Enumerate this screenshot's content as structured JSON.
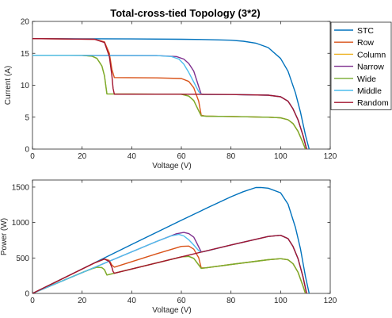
{
  "chart_data": [
    {
      "type": "line",
      "title": "Total-cross-tied Topology (3*2)",
      "xlabel": "Voltage (V)",
      "ylabel": "Current (A)",
      "xlim": [
        0,
        120
      ],
      "ylim": [
        0,
        20
      ],
      "xticks": [
        0,
        20,
        40,
        60,
        80,
        100,
        120
      ],
      "yticks": [
        0,
        5,
        10,
        15,
        20
      ],
      "grid": false,
      "legend": "outside-right",
      "series": [
        {
          "name": "STC",
          "color": "#0072BD",
          "x": [
            0,
            20,
            40,
            60,
            70,
            80,
            85,
            90,
            95,
            100,
            103,
            106,
            108,
            110,
            111.5
          ],
          "y": [
            17.3,
            17.28,
            17.25,
            17.2,
            17.15,
            17.05,
            16.9,
            16.6,
            15.9,
            14.2,
            12.2,
            8.8,
            5.8,
            2.2,
            0
          ]
        },
        {
          "name": "Row",
          "color": "#D95319",
          "x": [
            0,
            25,
            29,
            31,
            32,
            33,
            50,
            60,
            63,
            65,
            67,
            68,
            70,
            80,
            95,
            100,
            103,
            105,
            107,
            109,
            110
          ],
          "y": [
            17.3,
            17.2,
            16.8,
            15.0,
            12.5,
            11.2,
            11.15,
            11.05,
            10.6,
            9.6,
            7.5,
            5.3,
            5.15,
            5.1,
            5.0,
            4.9,
            4.6,
            4.0,
            2.8,
            1.0,
            0
          ]
        },
        {
          "name": "Column",
          "color": "#EDB120",
          "x": [
            0,
            20,
            24,
            26,
            28,
            29,
            30,
            60,
            63,
            65,
            66,
            67,
            68,
            70,
            80,
            95,
            100,
            103,
            105,
            107,
            109,
            110
          ],
          "y": [
            14.7,
            14.68,
            14.55,
            14.2,
            13.0,
            11.5,
            8.65,
            8.6,
            8.3,
            7.6,
            6.8,
            6.0,
            5.2,
            5.15,
            5.1,
            5.0,
            4.9,
            4.6,
            4.0,
            2.8,
            1.0,
            0
          ]
        },
        {
          "name": "Narrow",
          "color": "#7E2F8E",
          "x": [
            0,
            50,
            58,
            61,
            63,
            65,
            66,
            67,
            68,
            69,
            80,
            95,
            100,
            103,
            105,
            107,
            109,
            110.5
          ],
          "y": [
            14.7,
            14.65,
            14.5,
            14.1,
            13.4,
            12.2,
            11.0,
            9.8,
            8.6,
            8.55,
            8.55,
            8.45,
            8.2,
            7.5,
            6.3,
            4.6,
            2.2,
            0
          ]
        },
        {
          "name": "Wide",
          "color": "#77AC30",
          "x": [
            0,
            20,
            24,
            26,
            28,
            29,
            30,
            60,
            63,
            65,
            66,
            67,
            68,
            70,
            80,
            95,
            100,
            103,
            105,
            107,
            109,
            110
          ],
          "y": [
            14.7,
            14.68,
            14.55,
            14.2,
            13.0,
            11.5,
            8.65,
            8.6,
            8.3,
            7.6,
            6.8,
            6.0,
            5.2,
            5.15,
            5.1,
            5.0,
            4.9,
            4.6,
            4.0,
            2.8,
            1.0,
            0
          ]
        },
        {
          "name": "Middle",
          "color": "#4DBEEE",
          "x": [
            0,
            50,
            56,
            59,
            61,
            63,
            65,
            67,
            68,
            69,
            80,
            95,
            100,
            103,
            105,
            107,
            109,
            110.5
          ],
          "y": [
            14.7,
            14.65,
            14.5,
            14.1,
            13.3,
            12.0,
            10.5,
            9.0,
            8.6,
            8.55,
            8.55,
            8.45,
            8.2,
            7.5,
            6.3,
            4.6,
            2.2,
            0
          ]
        },
        {
          "name": "Random",
          "color": "#A2142F",
          "x": [
            0,
            25,
            29,
            31,
            32,
            32.5,
            33,
            60,
            80,
            95,
            100,
            103,
            105,
            107,
            109,
            110.5
          ],
          "y": [
            17.3,
            17.2,
            16.7,
            14.5,
            11.5,
            9.5,
            8.6,
            8.6,
            8.55,
            8.45,
            8.2,
            7.5,
            6.3,
            4.6,
            2.2,
            0
          ]
        }
      ]
    },
    {
      "type": "line",
      "title": "",
      "xlabel": "Voltage (V)",
      "ylabel": "Power (W)",
      "xlim": [
        0,
        120
      ],
      "ylim": [
        0,
        1600
      ],
      "xticks": [
        0,
        20,
        40,
        60,
        80,
        100,
        120
      ],
      "yticks": [
        0,
        500,
        1000,
        1500
      ],
      "grid": false,
      "legend": "none",
      "series": [
        {
          "name": "STC",
          "color": "#0072BD",
          "x": [
            0,
            20,
            40,
            60,
            70,
            80,
            85,
            90,
            92,
            95,
            100,
            103,
            106,
            108,
            110,
            111.5
          ],
          "y": [
            0,
            346,
            690,
            1032,
            1200,
            1364,
            1436,
            1494,
            1495,
            1485,
            1420,
            1260,
            930,
            630,
            240,
            0
          ]
        },
        {
          "name": "Row",
          "color": "#D95319",
          "x": [
            0,
            25,
            29,
            31,
            32,
            33,
            50,
            60,
            63,
            65,
            67,
            68,
            70,
            80,
            95,
            100,
            103,
            105,
            107,
            109,
            110
          ],
          "y": [
            0,
            430,
            487,
            465,
            400,
            370,
            558,
            663,
            668,
            624,
            503,
            360,
            361,
            408,
            475,
            490,
            474,
            420,
            300,
            109,
            0
          ]
        },
        {
          "name": "Column",
          "color": "#EDB120",
          "x": [
            0,
            20,
            24,
            26,
            28,
            29,
            30,
            60,
            63,
            65,
            66,
            67,
            68,
            70,
            80,
            95,
            100,
            103,
            105,
            107,
            109,
            110
          ],
          "y": [
            0,
            294,
            349,
            369,
            364,
            334,
            260,
            516,
            523,
            494,
            449,
            402,
            354,
            361,
            408,
            475,
            490,
            474,
            420,
            300,
            109,
            0
          ]
        },
        {
          "name": "Narrow",
          "color": "#7E2F8E",
          "x": [
            0,
            50,
            58,
            61,
            63,
            65,
            66,
            67,
            68,
            69,
            80,
            95,
            100,
            103,
            105,
            107,
            109,
            110.5
          ],
          "y": [
            0,
            733,
            841,
            860,
            844,
            793,
            726,
            657,
            585,
            590,
            684,
            803,
            820,
            773,
            662,
            492,
            240,
            0
          ]
        },
        {
          "name": "Wide",
          "color": "#77AC30",
          "x": [
            0,
            20,
            24,
            26,
            28,
            29,
            30,
            60,
            63,
            65,
            66,
            67,
            68,
            70,
            80,
            95,
            100,
            103,
            105,
            107,
            109,
            110
          ],
          "y": [
            0,
            294,
            349,
            369,
            364,
            334,
            260,
            516,
            523,
            494,
            449,
            402,
            354,
            361,
            408,
            475,
            490,
            474,
            420,
            300,
            109,
            0
          ]
        },
        {
          "name": "Middle",
          "color": "#4DBEEE",
          "x": [
            0,
            50,
            56,
            59,
            61,
            63,
            65,
            67,
            68,
            69,
            80,
            95,
            100,
            103,
            105,
            107,
            109,
            110.5
          ],
          "y": [
            0,
            733,
            812,
            832,
            811,
            756,
            683,
            603,
            585,
            590,
            684,
            803,
            820,
            773,
            662,
            492,
            240,
            0
          ]
        },
        {
          "name": "Random",
          "color": "#A2142F",
          "x": [
            0,
            25,
            29,
            31,
            32,
            32.5,
            33,
            60,
            80,
            95,
            100,
            103,
            105,
            107,
            109,
            110.5
          ],
          "y": [
            0,
            430,
            484,
            450,
            368,
            309,
            284,
            516,
            684,
            803,
            820,
            773,
            662,
            492,
            240,
            0
          ]
        }
      ]
    }
  ]
}
